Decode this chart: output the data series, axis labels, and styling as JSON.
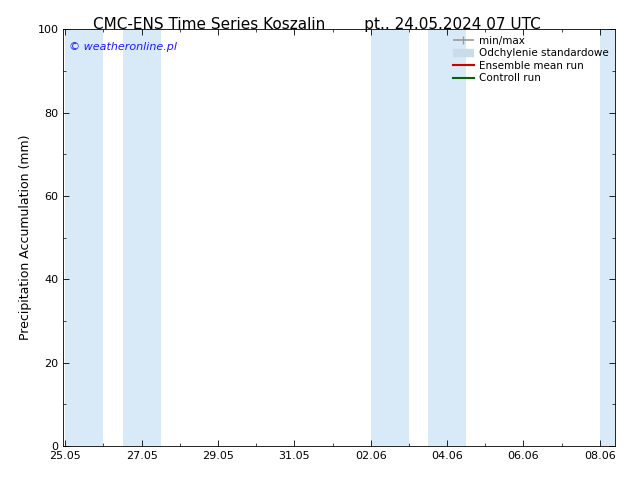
{
  "title_left": "CMC-ENS Time Series Koszalin",
  "title_right": "pt.. 24.05.2024 07 UTC",
  "ylabel": "Precipitation Accumulation (mm)",
  "ylim": [
    0,
    100
  ],
  "yticks": [
    0,
    20,
    40,
    60,
    80,
    100
  ],
  "xticklabels": [
    "25.05",
    "27.05",
    "29.05",
    "31.05",
    "02.06",
    "04.06",
    "06.06",
    "08.06"
  ],
  "xtick_positions": [
    0,
    2,
    4,
    6,
    8,
    10,
    12,
    14
  ],
  "xlim": [
    -0.05,
    14.4
  ],
  "watermark": "© weatheronline.pl",
  "watermark_color": "#1a1aff",
  "bg_color": "#ffffff",
  "plot_bg_color": "#ffffff",
  "band_color": "#d8eaf7",
  "bands": [
    [
      0.0,
      1.0
    ],
    [
      1.5,
      2.5
    ],
    [
      8.0,
      9.0
    ],
    [
      9.5,
      10.5
    ],
    [
      14.0,
      14.4
    ]
  ],
  "legend_labels": [
    "min/max",
    "Odchylenie standardowe",
    "Ensemble mean run",
    "Controll run"
  ],
  "legend_colors": [
    "#999999",
    "#c8dcea",
    "#cc0000",
    "#006600"
  ],
  "legend_lw": [
    1.2,
    6,
    1.5,
    1.5
  ],
  "title_fontsize": 11,
  "axis_label_fontsize": 9,
  "tick_fontsize": 8,
  "legend_fontsize": 7.5,
  "watermark_fontsize": 8
}
